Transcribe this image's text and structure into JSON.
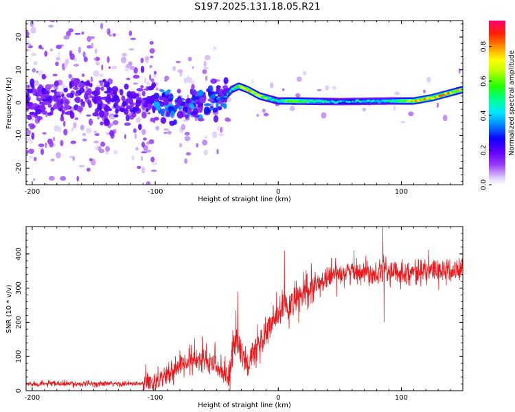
{
  "title": "S197.2025.131.18.05.R21",
  "colors": {
    "snr_line": "#e8191d",
    "rainbow": [
      "#ffffff",
      "#e8d8fb",
      "#b070f0",
      "#7000ff",
      "#3000ff",
      "#0040ff",
      "#00d8ff",
      "#00ff80",
      "#40ff00",
      "#c8ff00",
      "#ffff00",
      "#ffa000",
      "#ff3000",
      "#ff0040",
      "#ff0080"
    ]
  },
  "chart_data": [
    {
      "type": "heatmap",
      "title": "S197.2025.131.18.05.R21",
      "xlabel": "Height of straight line (km)",
      "ylabel": "Frequency (Hz)",
      "xlim": [
        -205,
        150
      ],
      "ylim": [
        -25,
        25
      ],
      "x_ticks": [
        -200,
        -100,
        0,
        100
      ],
      "y_ticks": [
        -20,
        -10,
        0,
        10,
        20
      ],
      "colorbar": {
        "label": "Normalized spectral amplitude",
        "range": [
          0.0,
          0.95
        ],
        "ticks": [
          0.0,
          0.2,
          0.4,
          0.6,
          0.8
        ]
      },
      "ridge": {
        "x": [
          -205,
          -150,
          -100,
          -80,
          -60,
          -45,
          -38,
          -32,
          -25,
          -15,
          -5,
          0,
          10,
          50,
          90,
          110,
          125,
          140,
          150
        ],
        "freq_hz": [
          0.5,
          0.5,
          0,
          -1,
          0,
          1,
          4,
          5,
          4,
          2,
          1,
          0.5,
          0.5,
          0.3,
          0.5,
          0.5,
          1.5,
          3,
          4
        ],
        "amplitude": [
          0.15,
          0.18,
          0.22,
          0.3,
          0.35,
          0.4,
          0.55,
          0.7,
          0.85,
          0.75,
          0.6,
          0.55,
          0.8,
          0.45,
          0.55,
          0.85,
          0.9,
          0.85,
          0.8
        ]
      }
    },
    {
      "type": "line",
      "xlabel": "Height of straight line (km)",
      "ylabel": "SNR (10 * v/v)",
      "xlim": [
        -205,
        150
      ],
      "ylim": [
        0,
        480
      ],
      "x_ticks": [
        -200,
        -100,
        0,
        100
      ],
      "y_ticks": [
        0,
        100,
        200,
        300,
        400
      ],
      "series": [
        {
          "x": [
            -205,
            -150,
            -110,
            -100,
            -90,
            -80,
            -70,
            -60,
            -50,
            -45,
            -40,
            -35,
            -30,
            -25,
            -20,
            -15,
            -10,
            -5,
            0,
            5,
            10,
            20,
            30,
            40,
            50,
            60,
            70,
            80,
            85,
            90,
            100,
            110,
            120,
            130,
            140,
            150
          ],
          "y": [
            20,
            20,
            20,
            30,
            45,
            75,
            90,
            85,
            70,
            55,
            40,
            160,
            110,
            75,
            110,
            140,
            170,
            195,
            225,
            245,
            250,
            280,
            305,
            330,
            345,
            350,
            350,
            345,
            365,
            345,
            345,
            348,
            350,
            352,
            348,
            355
          ],
          "peaks": [
            {
              "x": -33,
              "y": 290
            },
            {
              "x": 5,
              "y": 410
            },
            {
              "x": 85,
              "y": 480
            },
            {
              "x": 86,
              "y": 200
            }
          ]
        }
      ]
    }
  ]
}
